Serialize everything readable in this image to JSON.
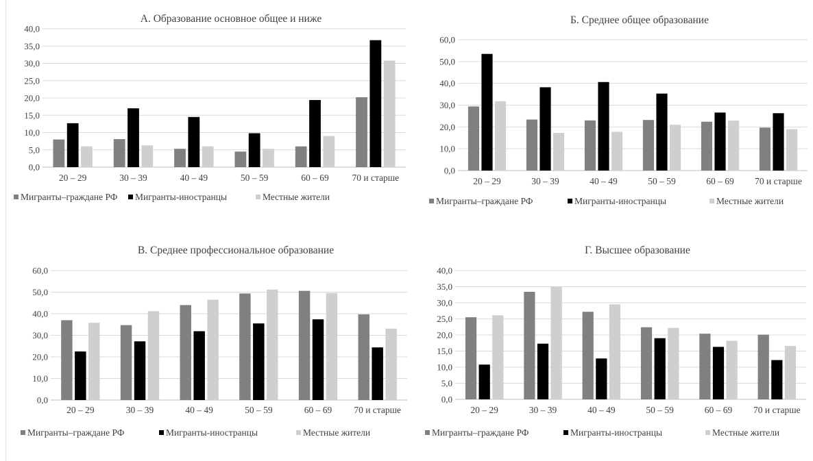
{
  "colors": {
    "series": [
      "#808080",
      "#000000",
      "#cfcfcf"
    ],
    "grid": "#d9d9d9",
    "axis": "#bfbfbf",
    "text": "#404040"
  },
  "chart_data": [
    {
      "type": "bar",
      "title": "А. Образование основное общее и ниже",
      "categories": [
        "20 – 29",
        "30 – 39",
        "40 – 49",
        "50 – 59",
        "60 – 69",
        "70 и старше"
      ],
      "series": [
        {
          "name": "Мигранты–граждане РФ",
          "values": [
            8.0,
            8.1,
            5.3,
            4.5,
            6.0,
            20.2
          ]
        },
        {
          "name": "Мигранты-иностранцы",
          "values": [
            12.7,
            17.0,
            14.5,
            9.8,
            19.4,
            36.7
          ]
        },
        {
          "name": "Местные жители",
          "values": [
            6.0,
            6.3,
            6.0,
            5.3,
            9.0,
            30.8
          ]
        }
      ],
      "ylim": [
        0,
        40
      ],
      "ystep": 5,
      "yticks": [
        "0,0",
        "5,0",
        "10,0",
        "15,0",
        "20,0",
        "25,0",
        "30,0",
        "35,0",
        "40,0"
      ],
      "legend": "bottom",
      "grid": true
    },
    {
      "type": "bar",
      "title": "Б. Среднее общее образование",
      "categories": [
        "20 – 29",
        "30 – 39",
        "40 – 49",
        "50 – 59",
        "60 – 69",
        "70 и старше"
      ],
      "series": [
        {
          "name": "Мигранты–граждане РФ",
          "values": [
            29.4,
            23.4,
            23.0,
            23.2,
            22.4,
            19.7
          ]
        },
        {
          "name": "Мигранты-иностранцы",
          "values": [
            53.5,
            38.2,
            40.6,
            35.3,
            26.6,
            26.3
          ]
        },
        {
          "name": "Местные жители",
          "values": [
            31.8,
            17.3,
            17.8,
            21.0,
            22.9,
            19.0
          ]
        }
      ],
      "ylim": [
        0,
        60
      ],
      "ystep": 10,
      "yticks": [
        "0,0",
        "10,0",
        "20,0",
        "30,0",
        "40,0",
        "50,0",
        "60,0"
      ],
      "legend": "bottom",
      "grid": true
    },
    {
      "type": "bar",
      "title": "В. Среднее профессиональное образование",
      "categories": [
        "20 – 29",
        "30 – 39",
        "40 – 49",
        "50 – 59",
        "60 – 69",
        "70 и старше"
      ],
      "series": [
        {
          "name": "Мигранты–граждане РФ",
          "values": [
            37.0,
            34.7,
            44.0,
            49.4,
            50.6,
            39.7
          ]
        },
        {
          "name": "Мигранты-иностранцы",
          "values": [
            22.5,
            27.2,
            31.9,
            35.5,
            37.4,
            24.4
          ]
        },
        {
          "name": "Местные жители",
          "values": [
            35.8,
            41.2,
            46.5,
            51.2,
            49.6,
            33.1
          ]
        }
      ],
      "ylim": [
        0,
        60
      ],
      "ystep": 10,
      "yticks": [
        "0,0",
        "10,0",
        "20,0",
        "30,0",
        "40,0",
        "50,0",
        "60,0"
      ],
      "legend": "bottom",
      "grid": true
    },
    {
      "type": "bar",
      "title": "Г. Высшее образование",
      "categories": [
        "20 – 29",
        "30 – 39",
        "40 – 49",
        "50 – 59",
        "60 – 69",
        "70 и старше"
      ],
      "series": [
        {
          "name": "Мигранты–граждане РФ",
          "values": [
            25.5,
            33.4,
            27.2,
            22.4,
            20.4,
            20.1
          ]
        },
        {
          "name": "Мигранты-иностранцы",
          "values": [
            10.8,
            17.3,
            12.7,
            19.0,
            16.3,
            12.2
          ]
        },
        {
          "name": "Местные жители",
          "values": [
            26.1,
            35.0,
            29.5,
            22.2,
            18.2,
            16.6
          ]
        }
      ],
      "ylim": [
        0,
        40
      ],
      "ystep": 5,
      "yticks": [
        "0,0",
        "5,0",
        "10,0",
        "15,0",
        "20,0",
        "25,0",
        "30,0",
        "35,0",
        "40,0"
      ],
      "legend": "bottom",
      "grid": true
    }
  ]
}
